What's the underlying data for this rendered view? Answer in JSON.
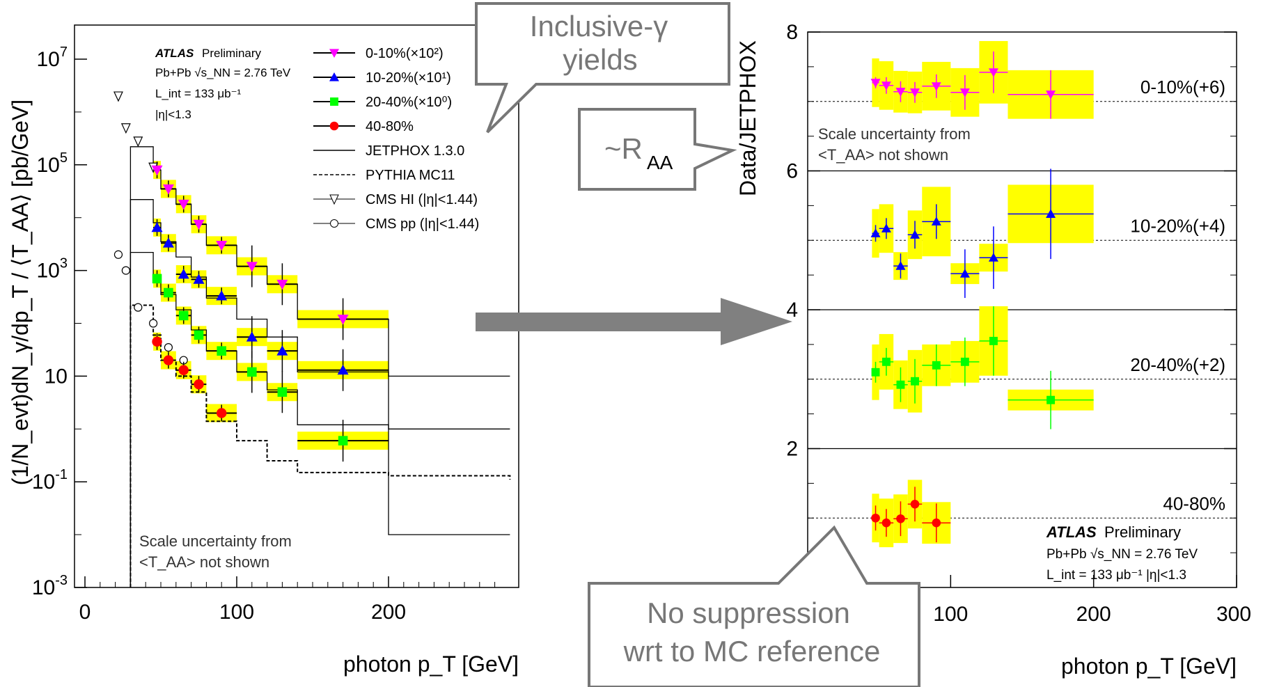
{
  "callouts": {
    "inclusive": [
      "Inclusive-γ",
      "yields"
    ],
    "raa": "~R",
    "raa_sub": "AA",
    "no_supp": [
      "No suppression",
      "wrt to MC reference"
    ]
  },
  "chart_data": [
    {
      "type": "scatter",
      "log_y": true,
      "title": "",
      "xlabel": "photon p_T [GeV]",
      "ylabel": "(1/N_evt)dN_γ/dp_T / ⟨T_AA⟩ [pb/GeV]",
      "xlim": [
        0,
        280
      ],
      "ylim": [
        0.001,
        10000000
      ],
      "x_ticks": [
        "0",
        "100",
        "200"
      ],
      "y_ticks": [
        "10^-3",
        "10^-1",
        "10",
        "10^3",
        "10^5",
        "10^7"
      ],
      "experiment": "ATLAS",
      "experiment_suffix": "Preliminary",
      "info": [
        "Pb+Pb √s_NN = 2.76 TeV",
        "L_int = 133 μb⁻¹",
        "|η|<1.3"
      ],
      "note": [
        "Scale uncertainty from",
        "<T_AA> not shown"
      ],
      "legend": [
        "0-10%(×10²)",
        "10-20%(×10¹)",
        "20-40%(×10⁰)",
        "40-80%",
        "JETPHOX 1.3.0",
        "PYTHIA MC11",
        "CMS HI (|η|<1.44)",
        "CMS pp (|η|<1.44)"
      ],
      "series": [
        {
          "name": "0-10%(×10²)",
          "color": "#ff00ff",
          "marker": "tri-down",
          "x": [
            47.5,
            55,
            65,
            75,
            90,
            110,
            130,
            170
          ],
          "xerr": [
            2.5,
            5,
            5,
            5,
            10,
            10,
            10,
            30
          ],
          "y": [
            80000,
            35000,
            18000,
            7500,
            3000,
            1200,
            550,
            120
          ]
        },
        {
          "name": "10-20%(×10¹)",
          "color": "#0000ff",
          "marker": "tri-up",
          "x": [
            47.5,
            55,
            65,
            75,
            90,
            110,
            130,
            170
          ],
          "xerr": [
            2.5,
            5,
            5,
            5,
            10,
            10,
            10,
            30
          ],
          "y": [
            6500,
            3300,
            850,
            680,
            330,
            55,
            30,
            13
          ]
        },
        {
          "name": "20-40%(×10⁰)",
          "color": "#00ff00",
          "marker": "square",
          "x": [
            47.5,
            55,
            65,
            75,
            90,
            110,
            130,
            170
          ],
          "xerr": [
            2.5,
            5,
            5,
            5,
            10,
            10,
            10,
            30
          ],
          "y": [
            700,
            380,
            140,
            60,
            30,
            12,
            5,
            0.6
          ]
        },
        {
          "name": "40-80%",
          "color": "#ff0000",
          "marker": "circle",
          "x": [
            47.5,
            55,
            65,
            75,
            90
          ],
          "xerr": [
            2.5,
            5,
            5,
            5,
            10
          ],
          "y": [
            45,
            20,
            13,
            7,
            2
          ]
        }
      ],
      "jetphox": [
        {
          "edges": [
            30,
            45,
            50,
            60,
            70,
            80,
            100,
            120,
            140,
            200,
            280
          ],
          "y": [
            220000,
            80000,
            35000,
            18000,
            7500,
            3000,
            1200,
            550,
            120,
            10,
            10
          ]
        },
        {
          "edges": [
            30,
            45,
            50,
            60,
            70,
            80,
            100,
            120,
            140,
            200,
            280
          ],
          "y": [
            22000,
            8000,
            3500,
            1800,
            750,
            300,
            120,
            55,
            12,
            1,
            1
          ]
        },
        {
          "edges": [
            30,
            45,
            50,
            60,
            70,
            80,
            100,
            120,
            140,
            200,
            280
          ],
          "y": [
            2200,
            800,
            350,
            180,
            75,
            30,
            12,
            5.5,
            1.2,
            0.01,
            0.01
          ]
        }
      ],
      "pythia": {
        "edges": [
          30,
          45,
          50,
          60,
          70,
          80,
          100,
          120,
          140,
          200,
          280
        ],
        "y": [
          220,
          60,
          20,
          10,
          5,
          1.4,
          0.6,
          0.25,
          0.15,
          0.13,
          0.11
        ]
      },
      "cms_hi": {
        "x": [
          22,
          27,
          35,
          45
        ],
        "y": [
          2000000,
          500000,
          280000,
          90000
        ]
      },
      "cms_pp": {
        "x": [
          22,
          27,
          35,
          45,
          55,
          65
        ],
        "y": [
          2000,
          1000,
          200,
          100,
          35,
          20
        ]
      }
    },
    {
      "type": "scatter",
      "title": "",
      "xlabel": "photon p_T [GeV]",
      "ylabel": "Data/JETPHOX",
      "xlim": [
        0,
        300
      ],
      "ylim": [
        0,
        8
      ],
      "x_ticks": [
        "100",
        "200",
        "300"
      ],
      "y_ticks": [
        "2",
        "4",
        "6",
        "8"
      ],
      "y_dividers": [
        2,
        4,
        6
      ],
      "experiment": "ATLAS",
      "experiment_suffix": "Preliminary",
      "info": [
        "Pb+Pb √s_NN = 2.76 TeV",
        "L_int = 133 μb⁻¹   |η|<1.3"
      ],
      "note": [
        "Scale uncertainty from",
        "<T_AA> not shown"
      ],
      "series": [
        {
          "name": "0-10%(+6)",
          "offset": 6,
          "color": "#ff00ff",
          "marker": "tri-down",
          "x": [
            47.5,
            55,
            65,
            75,
            90,
            110,
            130,
            170
          ],
          "xerr": [
            2.5,
            5,
            5,
            5,
            10,
            10,
            10,
            30
          ],
          "y": [
            7.27,
            7.23,
            7.14,
            7.13,
            7.22,
            7.13,
            7.42,
            7.1
          ],
          "yerr": [
            0.08,
            0.12,
            0.15,
            0.15,
            0.17,
            0.25,
            0.3,
            0.35
          ],
          "band": [
            0.35,
            0.35,
            0.3,
            0.3,
            0.35,
            0.35,
            0.45,
            0.35
          ]
        },
        {
          "name": "10-20%(+4)",
          "offset": 4,
          "color": "#0000ff",
          "marker": "tri-up",
          "x": [
            47.5,
            55,
            65,
            75,
            90,
            110,
            130,
            170
          ],
          "xerr": [
            2.5,
            5,
            5,
            5,
            10,
            10,
            10,
            30
          ],
          "y": [
            5.1,
            5.17,
            4.63,
            5.08,
            5.27,
            4.52,
            4.75,
            5.38
          ],
          "yerr": [
            0.12,
            0.15,
            0.18,
            0.2,
            0.25,
            0.35,
            0.45,
            0.65
          ],
          "band": [
            0.35,
            0.35,
            0.2,
            0.35,
            0.5,
            0.15,
            0.2,
            0.42
          ]
        },
        {
          "name": "20-40%(+2)",
          "offset": 2,
          "color": "#00ff00",
          "marker": "square",
          "x": [
            47.5,
            55,
            65,
            75,
            90,
            110,
            130,
            170
          ],
          "xerr": [
            2.5,
            5,
            5,
            5,
            10,
            10,
            10,
            30
          ],
          "y": [
            3.1,
            3.25,
            2.92,
            2.97,
            3.2,
            3.25,
            3.55,
            2.7
          ],
          "yerr": [
            0.15,
            0.2,
            0.25,
            0.32,
            0.3,
            0.35,
            0.5,
            0.42
          ],
          "band": [
            0.4,
            0.4,
            0.35,
            0.45,
            0.3,
            0.3,
            0.5,
            0.15
          ]
        },
        {
          "name": "40-80%",
          "offset": 0,
          "color": "#ff0000",
          "marker": "circle",
          "x": [
            47.5,
            55,
            65,
            75,
            90
          ],
          "xerr": [
            2.5,
            5,
            5,
            5,
            10
          ],
          "y": [
            1.0,
            0.93,
            0.99,
            1.2,
            0.93
          ],
          "yerr": [
            0.18,
            0.2,
            0.25,
            0.25,
            0.28
          ],
          "band": [
            0.35,
            0.35,
            0.35,
            0.35,
            0.3
          ]
        }
      ]
    }
  ]
}
